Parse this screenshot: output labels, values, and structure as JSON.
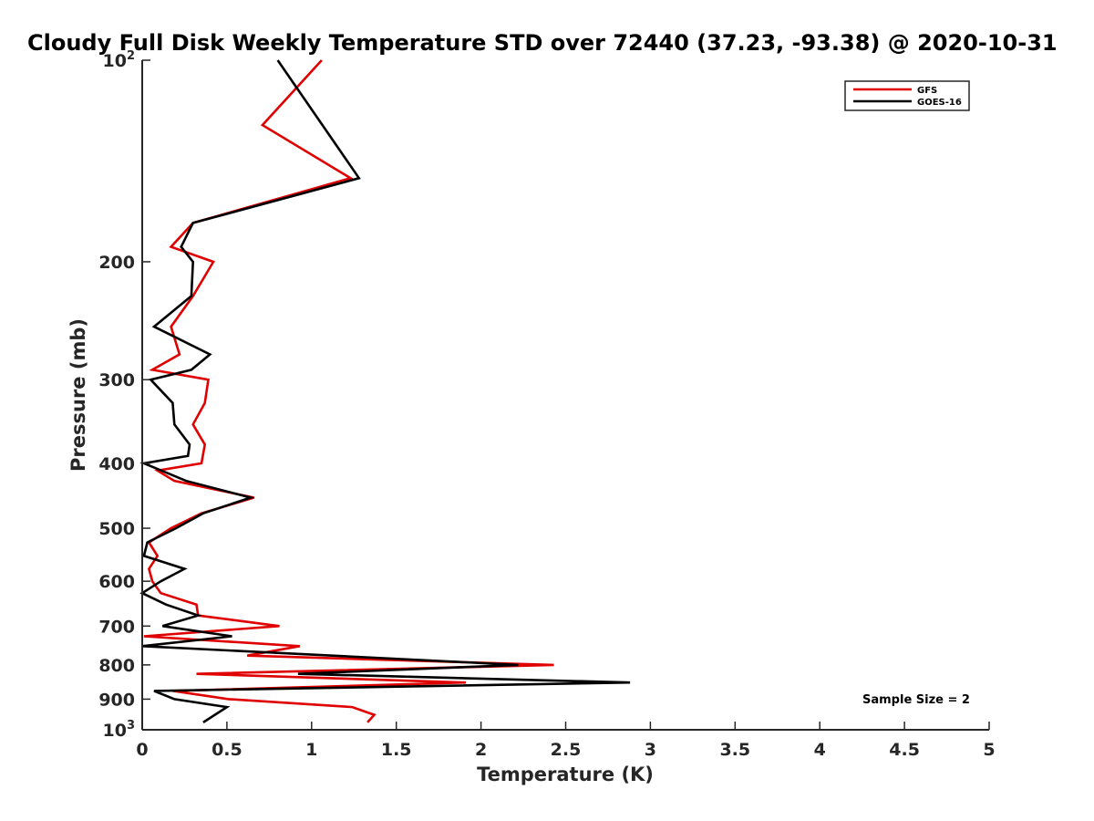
{
  "chart_data": {
    "type": "line",
    "title": "Cloudy Full Disk Weekly Temperature STD over 72440 (37.23, -93.38) @ 2020-10-31",
    "xlabel": "Temperature (K)",
    "ylabel": "Pressure (mb)",
    "xlim": [
      0,
      5
    ],
    "ylim": [
      100,
      1000
    ],
    "y_scale": "log",
    "y_reversed": true,
    "x_ticks": [
      "0",
      "0.5",
      "1",
      "1.5",
      "2",
      "2.5",
      "3",
      "3.5",
      "4",
      "4.5",
      "5"
    ],
    "y_ticks": [
      {
        "value": 100,
        "base": "10",
        "exp": "2"
      },
      {
        "value": 200,
        "label": "200"
      },
      {
        "value": 300,
        "label": "300"
      },
      {
        "value": 400,
        "label": "400"
      },
      {
        "value": 500,
        "label": "500"
      },
      {
        "value": 600,
        "label": "600"
      },
      {
        "value": 700,
        "label": "700"
      },
      {
        "value": 800,
        "label": "800"
      },
      {
        "value": 900,
        "label": "900"
      },
      {
        "value": 1000,
        "base": "10",
        "exp": "3"
      }
    ],
    "legend_position": "top-right",
    "grid": false,
    "annotation": "Sample Size = 2",
    "series": [
      {
        "name": "GFS",
        "color": "#e00000",
        "points": [
          [
            1.06,
            100
          ],
          [
            0.71,
            125
          ],
          [
            1.23,
            150
          ],
          [
            0.3,
            175
          ],
          [
            0.17,
            190
          ],
          [
            0.42,
            200
          ],
          [
            0.3,
            225
          ],
          [
            0.17,
            250
          ],
          [
            0.22,
            275
          ],
          [
            0.06,
            290
          ],
          [
            0.39,
            300
          ],
          [
            0.37,
            325
          ],
          [
            0.3,
            350
          ],
          [
            0.37,
            375
          ],
          [
            0.35,
            400
          ],
          [
            0.09,
            410
          ],
          [
            0.19,
            425
          ],
          [
            0.66,
            450
          ],
          [
            0.35,
            475
          ],
          [
            0.17,
            500
          ],
          [
            0.04,
            525
          ],
          [
            0.09,
            550
          ],
          [
            0.04,
            575
          ],
          [
            0.06,
            600
          ],
          [
            0.11,
            625
          ],
          [
            0.32,
            650
          ],
          [
            0.33,
            675
          ],
          [
            0.81,
            700
          ],
          [
            0.01,
            725
          ],
          [
            0.93,
            750
          ],
          [
            0.62,
            775
          ],
          [
            2.43,
            800
          ],
          [
            0.32,
            825
          ],
          [
            1.91,
            850
          ],
          [
            0.18,
            875
          ],
          [
            0.51,
            900
          ],
          [
            1.24,
            925
          ],
          [
            1.37,
            950
          ],
          [
            1.33,
            975
          ]
        ]
      },
      {
        "name": "GOES-16",
        "color": "#000000",
        "points": [
          [
            0.8,
            100
          ],
          [
            1.28,
            150
          ],
          [
            0.3,
            175
          ],
          [
            0.23,
            190
          ],
          [
            0.3,
            200
          ],
          [
            0.29,
            225
          ],
          [
            0.07,
            250
          ],
          [
            0.4,
            275
          ],
          [
            0.29,
            290
          ],
          [
            0.05,
            300
          ],
          [
            0.18,
            325
          ],
          [
            0.19,
            350
          ],
          [
            0.28,
            375
          ],
          [
            0.27,
            390
          ],
          [
            0.01,
            400
          ],
          [
            0.26,
            425
          ],
          [
            0.64,
            450
          ],
          [
            0.36,
            475
          ],
          [
            0.2,
            500
          ],
          [
            0.03,
            525
          ],
          [
            0.01,
            550
          ],
          [
            0.25,
            575
          ],
          [
            0.11,
            600
          ],
          [
            0.0,
            625
          ],
          [
            0.14,
            650
          ],
          [
            0.33,
            675
          ],
          [
            0.12,
            700
          ],
          [
            0.53,
            725
          ],
          [
            0.0,
            750
          ],
          [
            2.22,
            800
          ],
          [
            0.92,
            825
          ],
          [
            2.88,
            850
          ],
          [
            0.07,
            875
          ],
          [
            0.19,
            900
          ],
          [
            0.5,
            925
          ],
          [
            0.36,
            975
          ]
        ]
      }
    ]
  }
}
